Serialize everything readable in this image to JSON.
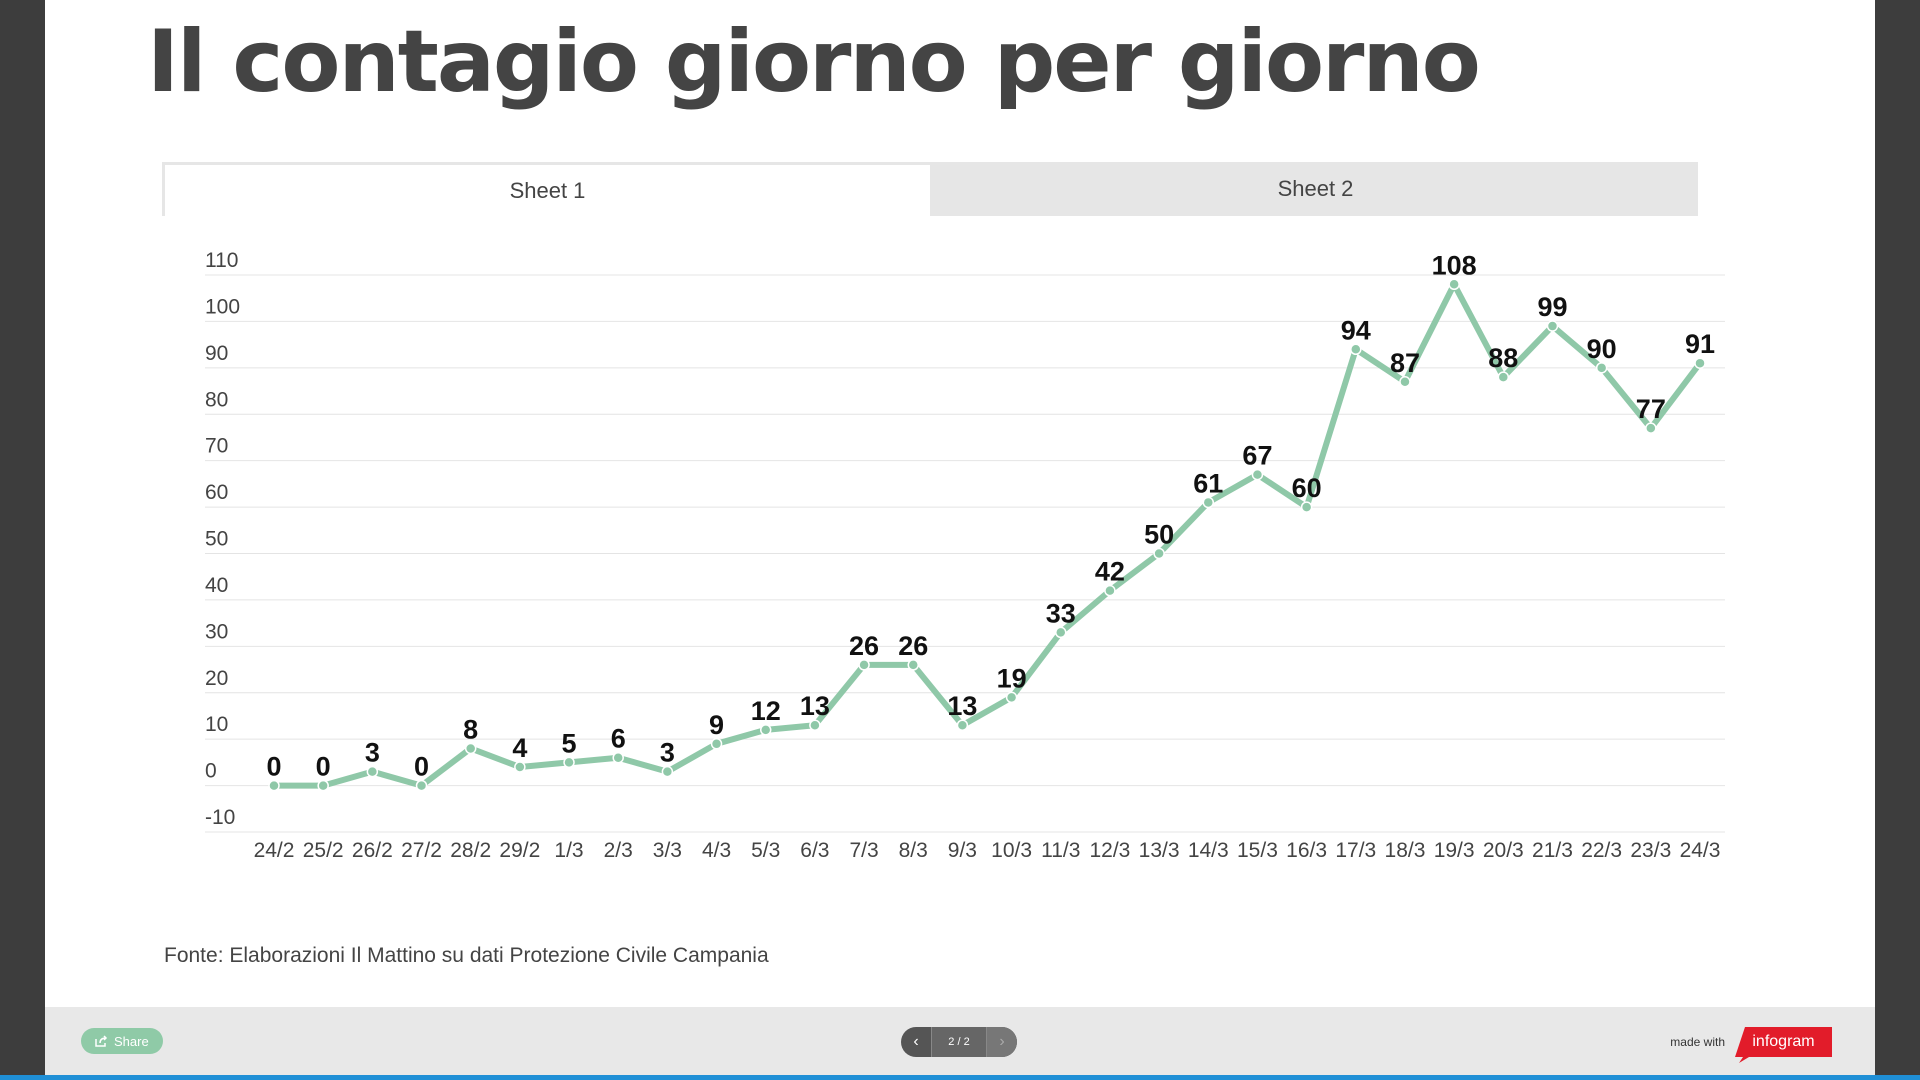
{
  "title": "Il contagio giorno per giorno",
  "tabs": [
    {
      "label": "Sheet 1",
      "active": true
    },
    {
      "label": "Sheet 2",
      "active": false
    }
  ],
  "source": "Fonte: Elaborazioni Il Mattino su dati Protezione Civile Campania",
  "footer": {
    "share_label": "Share",
    "pager": "2 / 2",
    "made_with": "made with",
    "brand": "infogram"
  },
  "colors": {
    "line": "#8fc8a8",
    "brand": "#e21c2a",
    "share": "#8fcaa7"
  },
  "chart_data": {
    "type": "line",
    "categories": [
      "24/2",
      "25/2",
      "26/2",
      "27/2",
      "28/2",
      "29/2",
      "1/3",
      "2/3",
      "3/3",
      "4/3",
      "5/3",
      "6/3",
      "7/3",
      "8/3",
      "9/3",
      "10/3",
      "11/3",
      "12/3",
      "13/3",
      "14/3",
      "15/3",
      "16/3",
      "17/3",
      "18/3",
      "19/3",
      "20/3",
      "21/3",
      "22/3",
      "23/3",
      "24/3"
    ],
    "values": [
      0,
      0,
      3,
      0,
      8,
      4,
      5,
      6,
      3,
      9,
      12,
      13,
      26,
      26,
      13,
      19,
      33,
      42,
      50,
      61,
      67,
      60,
      94,
      87,
      108,
      88,
      99,
      90,
      77,
      91
    ],
    "ylim": [
      -10,
      110
    ],
    "yticks": [
      "110",
      "100",
      "90",
      "80",
      "70",
      "60",
      "50",
      "40",
      "30",
      "20",
      "10",
      "0",
      "-10"
    ],
    "grid": true,
    "data_labels": true
  }
}
